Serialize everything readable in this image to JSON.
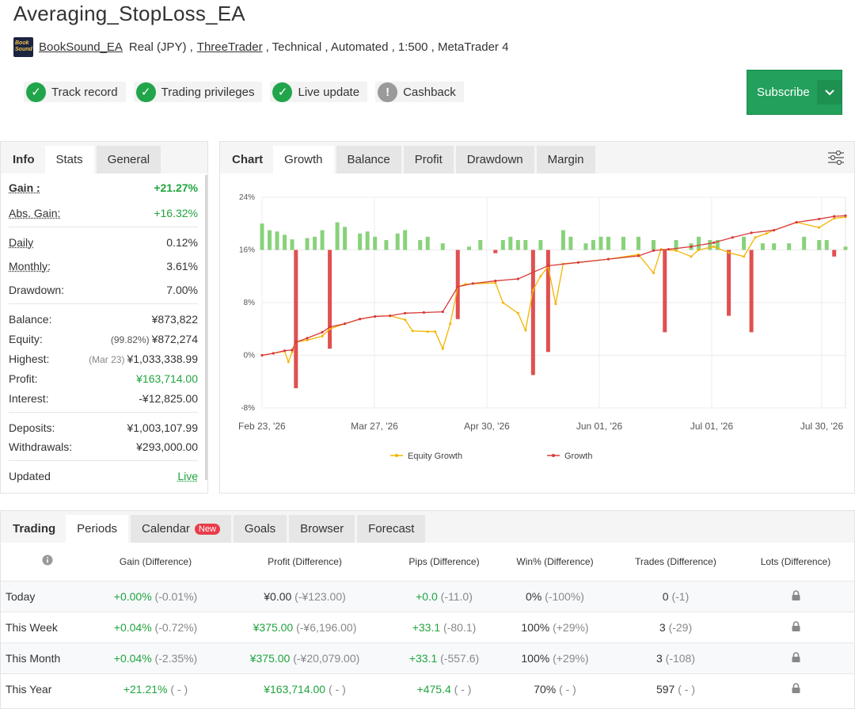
{
  "title": "Averaging_StopLoss_EA",
  "subline": {
    "author": "BookSound_EA",
    "account": "Real (JPY) ,",
    "broker": "ThreeTrader",
    "rest": ", Technical , Automated , 1:500 , MetaTrader 4",
    "avatar_text": "Book Sound"
  },
  "badges": [
    {
      "label": "Track record",
      "status": "ok"
    },
    {
      "label": "Trading privileges",
      "status": "ok"
    },
    {
      "label": "Live update",
      "status": "ok"
    },
    {
      "label": "Cashback",
      "status": "warn"
    }
  ],
  "subscribe_label": "Subscribe",
  "left_tabs": [
    "Info",
    "Stats",
    "General"
  ],
  "stats": {
    "gain_k": "Gain :",
    "gain_v": "+21.27%",
    "abs_k": "Abs. Gain:",
    "abs_v": "+16.32%",
    "daily_k": "Daily",
    "daily_v": "0.12%",
    "monthly_k": "Monthly:",
    "monthly_v": "3.61%",
    "dd_k": "Drawdown:",
    "dd_v": "7.00%",
    "bal_k": "Balance:",
    "bal_v": "¥873,822",
    "eq_k": "Equity:",
    "eq_pre": "(99.82%)",
    "eq_v": "¥872,274",
    "hi_k": "Highest:",
    "hi_pre": "(Mar 23)",
    "hi_v": "¥1,033,338.99",
    "pr_k": "Profit:",
    "pr_v": "¥163,714.00",
    "in_k": "Interest:",
    "in_v": "-¥12,825.00",
    "dep_k": "Deposits:",
    "dep_v": "¥1,003,107.99",
    "wd_k": "Withdrawals:",
    "wd_v": "¥293,000.00",
    "up_k": "Updated",
    "up_v": "Live"
  },
  "chart_tabs": [
    "Chart",
    "Growth",
    "Balance",
    "Profit",
    "Drawdown",
    "Margin"
  ],
  "chart_data": {
    "type": "line",
    "x_ticks": [
      "Feb 23, '26",
      "Mar 27, '26",
      "Apr 30, '26",
      "Jun 01, '26",
      "Jul 01, '26",
      "Jul 30, '26"
    ],
    "y_ticks": [
      "24%",
      "16%",
      "8%",
      "0%",
      "-8%"
    ],
    "ylim": [
      -8,
      24
    ],
    "legend": [
      "Equity Growth",
      "Growth"
    ],
    "colors": {
      "equity": "#f4b400",
      "growth": "#d93a3a",
      "bar_pos": "#88d27a",
      "bar_neg": "#e05050"
    },
    "growth": [
      [
        0,
        0.0
      ],
      [
        3,
        0.3
      ],
      [
        6,
        0.7
      ],
      [
        8,
        0.8
      ],
      [
        9,
        2.0
      ],
      [
        12,
        2.6
      ],
      [
        16,
        3.5
      ],
      [
        18,
        4.3
      ],
      [
        22,
        4.8
      ],
      [
        26,
        5.5
      ],
      [
        30,
        5.9
      ],
      [
        34,
        6.0
      ],
      [
        38,
        6.4
      ],
      [
        43,
        6.5
      ],
      [
        48,
        6.6
      ],
      [
        52,
        10.4
      ],
      [
        56,
        10.9
      ],
      [
        62,
        11.3
      ],
      [
        68,
        11.6
      ],
      [
        76,
        13.6
      ],
      [
        84,
        14.1
      ],
      [
        92,
        14.6
      ],
      [
        100,
        15.1
      ],
      [
        104,
        15.9
      ],
      [
        108,
        16.1
      ],
      [
        114,
        16.5
      ],
      [
        120,
        17.1
      ],
      [
        125,
        17.9
      ],
      [
        130,
        18.6
      ],
      [
        136,
        19.0
      ],
      [
        142,
        20.2
      ],
      [
        148,
        20.7
      ],
      [
        152,
        21.1
      ],
      [
        155,
        21.2
      ]
    ],
    "equity": [
      [
        0,
        0.0
      ],
      [
        3,
        0.3
      ],
      [
        6,
        0.6
      ],
      [
        7,
        -1.0
      ],
      [
        8,
        0.5
      ],
      [
        9,
        2.0
      ],
      [
        12,
        2.3
      ],
      [
        16,
        2.9
      ],
      [
        18,
        4.0
      ],
      [
        22,
        4.8
      ],
      [
        26,
        5.5
      ],
      [
        30,
        5.9
      ],
      [
        34,
        6.0
      ],
      [
        38,
        5.4
      ],
      [
        40,
        3.7
      ],
      [
        44,
        3.6
      ],
      [
        46,
        3.6
      ],
      [
        48,
        1.0
      ],
      [
        50,
        4.8
      ],
      [
        52,
        10.4
      ],
      [
        54,
        10.8
      ],
      [
        62,
        11.0
      ],
      [
        64,
        8.0
      ],
      [
        68,
        6.4
      ],
      [
        70,
        3.8
      ],
      [
        72,
        9.9
      ],
      [
        74,
        12.0
      ],
      [
        76,
        13.5
      ],
      [
        78,
        7.8
      ],
      [
        80,
        13.9
      ],
      [
        84,
        14.1
      ],
      [
        92,
        14.6
      ],
      [
        100,
        15.3
      ],
      [
        104,
        12.5
      ],
      [
        106,
        16.1
      ],
      [
        110,
        15.9
      ],
      [
        114,
        15.0
      ],
      [
        116,
        16.0
      ],
      [
        120,
        16.5
      ],
      [
        124,
        15.6
      ],
      [
        128,
        15.0
      ],
      [
        131,
        17.9
      ],
      [
        134,
        18.5
      ],
      [
        136,
        19.0
      ],
      [
        142,
        20.2
      ],
      [
        148,
        19.4
      ],
      [
        152,
        20.8
      ],
      [
        155,
        21.0
      ]
    ],
    "bars": [
      [
        0,
        4.0
      ],
      [
        2,
        3.0
      ],
      [
        4,
        2.8
      ],
      [
        6,
        2.3
      ],
      [
        8,
        1.6
      ],
      [
        9,
        -21.0
      ],
      [
        12,
        1.8
      ],
      [
        14,
        2.0
      ],
      [
        16,
        3.0
      ],
      [
        18,
        -15.0
      ],
      [
        20,
        4.2
      ],
      [
        22,
        3.5
      ],
      [
        26,
        2.5
      ],
      [
        28,
        2.8
      ],
      [
        30,
        2.0
      ],
      [
        33,
        1.5
      ],
      [
        36,
        2.5
      ],
      [
        38,
        3.0
      ],
      [
        42,
        1.5
      ],
      [
        44,
        2.0
      ],
      [
        48,
        1.0
      ],
      [
        52,
        -10.5
      ],
      [
        55,
        0.5
      ],
      [
        58,
        1.5
      ],
      [
        62,
        -0.5
      ],
      [
        64,
        1.5
      ],
      [
        66,
        2.0
      ],
      [
        68,
        1.5
      ],
      [
        70,
        1.5
      ],
      [
        72,
        -19.0
      ],
      [
        74,
        1.5
      ],
      [
        76,
        -15.5
      ],
      [
        80,
        3.0
      ],
      [
        82,
        2.0
      ],
      [
        86,
        1.0
      ],
      [
        88,
        1.5
      ],
      [
        90,
        2.0
      ],
      [
        92,
        2.0
      ],
      [
        96,
        2.0
      ],
      [
        100,
        2.0
      ],
      [
        104,
        1.5
      ],
      [
        107,
        -12.5
      ],
      [
        110,
        1.5
      ],
      [
        114,
        1.0
      ],
      [
        116,
        2.0
      ],
      [
        119,
        1.5
      ],
      [
        121,
        1.5
      ],
      [
        124,
        -10.0
      ],
      [
        128,
        2.0
      ],
      [
        130,
        -12.5
      ],
      [
        133,
        1.0
      ],
      [
        136,
        1.0
      ],
      [
        140,
        1.0
      ],
      [
        144,
        2.0
      ],
      [
        148,
        1.5
      ],
      [
        150,
        1.5
      ],
      [
        152,
        -1.0
      ],
      [
        155,
        0.5
      ]
    ]
  },
  "trading_tabs": [
    "Trading",
    "Periods",
    "Calendar",
    "Goals",
    "Browser",
    "Forecast"
  ],
  "new_label": "New",
  "table": {
    "headers": [
      "",
      "Gain (Difference)",
      "Profit (Difference)",
      "Pips (Difference)",
      "Win% (Difference)",
      "Trades (Difference)",
      "Lots (Difference)"
    ],
    "rows": [
      {
        "name": "Today",
        "gain": "+0.00%",
        "gain_d": "(-0.01%)",
        "profit": "¥0.00",
        "profit_d": "(-¥123.00)",
        "pips": "+0.0",
        "pips_d": "(-11.0)",
        "win": "0%",
        "win_d": "(-100%)",
        "trades": "0",
        "trades_d": "(-1)"
      },
      {
        "name": "This Week",
        "gain": "+0.04%",
        "gain_d": "(-0.72%)",
        "profit": "¥375.00",
        "profit_d": "(-¥6,196.00)",
        "pips": "+33.1",
        "pips_d": "(-80.1)",
        "win": "100%",
        "win_d": "(+29%)",
        "trades": "3",
        "trades_d": "(-29)"
      },
      {
        "name": "This Month",
        "gain": "+0.04%",
        "gain_d": "(-2.35%)",
        "profit": "¥375.00",
        "profit_d": "(-¥20,079.00)",
        "pips": "+33.1",
        "pips_d": "(-557.6)",
        "win": "100%",
        "win_d": "(+29%)",
        "trades": "3",
        "trades_d": "(-108)"
      },
      {
        "name": "This Year",
        "gain": "+21.21%",
        "gain_d": "( - )",
        "profit": "¥163,714.00",
        "profit_d": "( - )",
        "pips": "+475.4",
        "pips_d": "( - )",
        "win": "70%",
        "win_d": "( - )",
        "trades": "597",
        "trades_d": "( - )"
      }
    ]
  }
}
